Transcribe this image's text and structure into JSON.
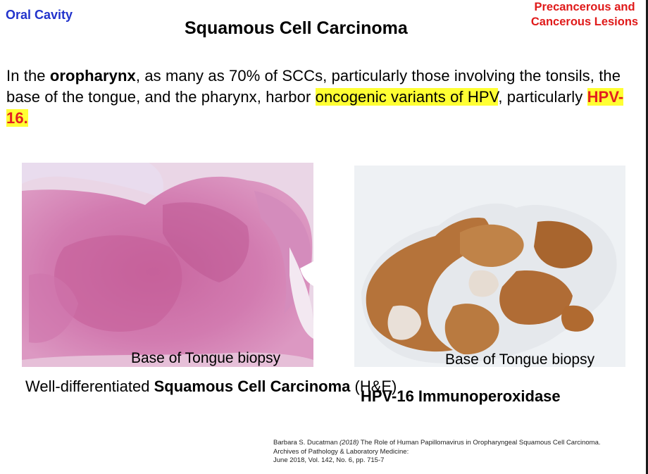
{
  "header": {
    "topic": "Oral Cavity",
    "section": "Precancerous and Cancerous Lesions",
    "title": "Squamous Cell Carcinoma"
  },
  "body": {
    "p1": "In the ",
    "p2": "oropharynx",
    "p3": ", as many as 70% of SCCs, particularly those involving the tonsils, the base of the tongue, and the pharynx, harbor ",
    "p4": "oncogenic variants of HPV",
    "p5": ", particularly ",
    "p6": "HPV-16."
  },
  "figures": {
    "left": {
      "label": "Base of Tongue biopsy",
      "caption_pre": "Well-differentiated ",
      "caption_bold": "Squamous Cell Carcinoma",
      "caption_post": " (H&E)"
    },
    "right": {
      "label": "Base of Tongue biopsy",
      "caption": "HPV-16 Immunoperoxidase"
    }
  },
  "citation": {
    "author": "Barbara S. Ducatman",
    "year": "(2018)",
    "title": " The Role of Human Papillomavirus in Oropharyngeal Squamous Cell Carcinoma.",
    "journal": "Archives of Pathology & Laboratory Medicine:",
    "volume": "June 2018, Vol. 142, No. 6, pp. 715-7"
  }
}
